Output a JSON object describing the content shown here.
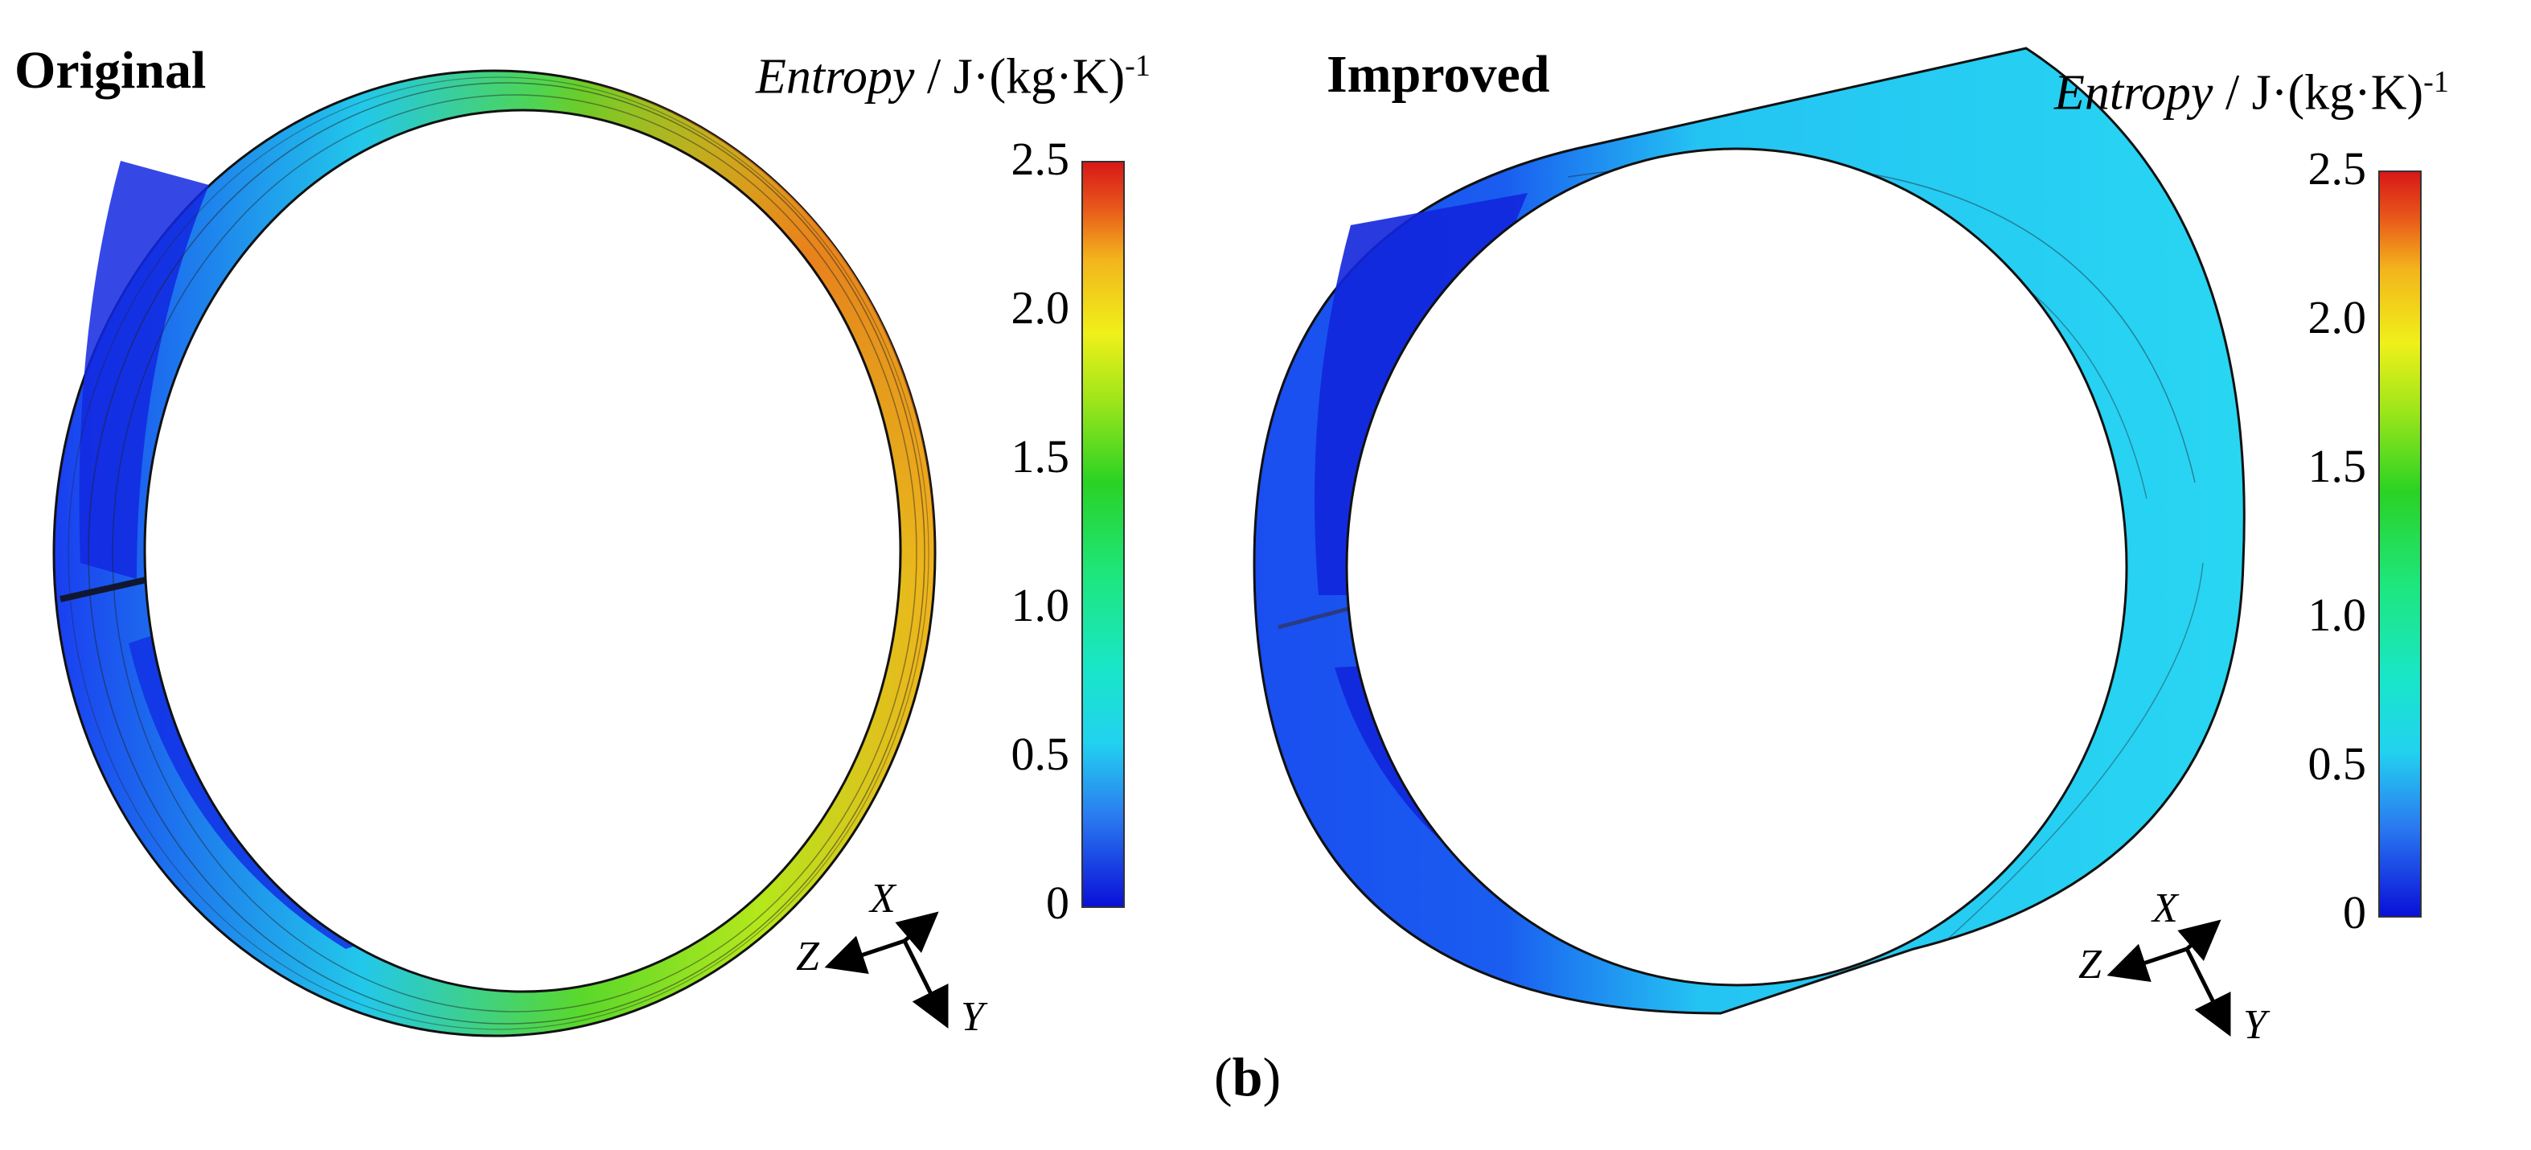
{
  "figure": {
    "sublabel_open": "(",
    "sublabel_letter": "b",
    "sublabel_close": ")"
  },
  "panels": [
    {
      "title": "Original",
      "colorbar": {
        "label_italic": "Entropy",
        "label_unit": " / J·(kg·K)",
        "label_exp": "-1",
        "ticks": [
          "2.5",
          "2.0",
          "1.5",
          "1.0",
          "0.5",
          "0"
        ],
        "min": 0,
        "max": 2.5
      },
      "axes": {
        "x": "X",
        "y": "Y",
        "z": "Z"
      }
    },
    {
      "title": "Improved",
      "colorbar": {
        "label_italic": "Entropy",
        "label_unit": " / J·(kg·K)",
        "label_exp": "-1",
        "ticks": [
          "2.5",
          "2.0",
          "1.5",
          "1.0",
          "0.5",
          "0"
        ],
        "min": 0,
        "max": 2.5
      },
      "axes": {
        "x": "X",
        "y": "Y",
        "z": "Z"
      }
    }
  ],
  "colors": {
    "low": "#0a10d8",
    "mid_low": "#22d2f0",
    "mid": "#2ad224",
    "mid_high": "#f0f01a",
    "high": "#d81818"
  }
}
